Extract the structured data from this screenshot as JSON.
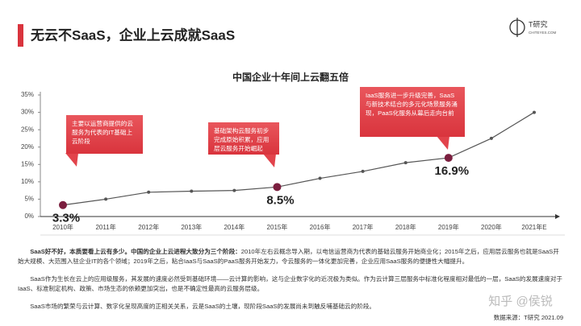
{
  "header": {
    "title": "无云不SaaS，企业上云成就SaaS",
    "logo": "T研究",
    "logo_sub": "CHITEYES.COM"
  },
  "chart_data": {
    "type": "line",
    "title": "中国企业十年间上云翻五倍",
    "categories": [
      "2010年",
      "2011年",
      "2012年",
      "2013年",
      "2014年",
      "2015年",
      "2016年",
      "2017年",
      "2018年",
      "2019年",
      "2020年",
      "2021年E"
    ],
    "values": [
      3.3,
      5,
      7,
      7.3,
      7.5,
      8.5,
      11,
      13,
      15.5,
      16.9,
      22.5,
      30
    ],
    "value_labels": [
      "3.3%",
      null,
      null,
      null,
      null,
      "8.5%",
      null,
      null,
      null,
      "16.9%",
      null,
      null
    ],
    "color": "#555555",
    "highlight_color": "#7b1f3f",
    "callout_color": "#e2434b",
    "ylim": [
      0,
      35
    ],
    "yticks": [
      {
        "value": 0,
        "label": "0%"
      },
      {
        "value": 5,
        "label": "5%"
      },
      {
        "value": 10,
        "label": "10%"
      },
      {
        "value": 15,
        "label": "15%"
      },
      {
        "value": 20,
        "label": "20%"
      },
      {
        "value": 25,
        "label": "25%"
      },
      {
        "value": 30,
        "label": "30%"
      },
      {
        "value": 35,
        "label": "35%"
      }
    ],
    "annotations": [
      "主要以运营商提供的云服务为代表的IT基础上云阶段",
      "基础架构云服务初步完成原始积累，应用层云服务开始崛起",
      "IaaS服务进一步升级完善，SaaS与新技术结合的多元化场景服务涌现，PaaS化服务从幕后走向台前"
    ]
  },
  "body": {
    "paragraphs": [
      {
        "bold": "SaaS好不好，本质要看上云有多少。中国的企业上云进程大致分为三个阶段：",
        "text": "2010年左右云概念导入期，以电信运营商为代表的基础云服务开始商业化；2015年之后，应用层云服务也就是SaaS开始大规模、大范围入驻企业IT的各个领域；2019年之后，粘合IaaS与SaaS的PaaS服务开始发力，令云服务的一体化更加完善，企业应用SaaS服务的便捷性大幅提升。"
      },
      {
        "text": "SaaS作为生长在云上的应用级服务，其发展的速度必然受到基础环境——云计算的影响，这与企业数字化的近况极为类似。作为云计算三层服务中标准化程度相对最低的一层，SaaS的发展速度对于IaaS、标准制定机构、政策、市场生态的依赖更加突出，也是不确定性最高的云服务层级。"
      },
      {
        "text": "SaaS市场的繁荣与云计算、数字化呈现高度的正相关关系，云是SaaS的土壤，现阶段SaaS的发展尚未到触反哺基础云的阶段。"
      }
    ],
    "source": "数据来源：T研究 2021.09",
    "watermark": "知乎 @侯锐"
  }
}
